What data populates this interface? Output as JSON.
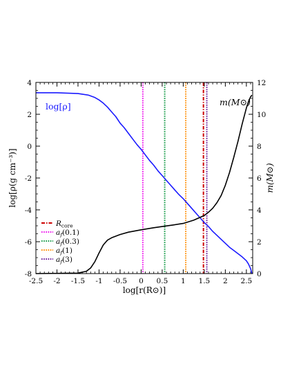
{
  "chart_data": {
    "type": "line",
    "xlabel": "log[r(R⊙)]",
    "ylabel_left": "log[ρ(g cm⁻³)]",
    "ylabel_right": "m(M⊙)",
    "xlim": [
      -2.5,
      2.65
    ],
    "ylim_left": [
      -8,
      4
    ],
    "ylim_right": [
      0,
      12
    ],
    "x_ticks": [
      -2.5,
      -2,
      -1.5,
      -1,
      -0.5,
      0,
      0.5,
      1,
      1.5,
      2,
      2.5
    ],
    "x_tick_labels": [
      "-2.5",
      "-2",
      "-1.5",
      "-1",
      "-0.5",
      "0",
      "0.5",
      "1",
      "1.5",
      "2",
      "2.5"
    ],
    "y_left_ticks": [
      4,
      2,
      0,
      -2,
      -4,
      -6,
      -8
    ],
    "y_left_tick_labels": [
      "4",
      "2",
      "0",
      "-2",
      "-4",
      "-6",
      "-8"
    ],
    "y_right_ticks": [
      12,
      10,
      8,
      6,
      4,
      2,
      0
    ],
    "y_right_tick_labels": [
      "12",
      "10",
      "8",
      "6",
      "4",
      "2",
      "0"
    ],
    "grid": false,
    "legend_position": "bottom-left",
    "annotations": [
      {
        "text": "log[ρ]",
        "color": "#1a1aff",
        "position": "top-left"
      },
      {
        "text": "m(M⊙)",
        "color": "#000000",
        "position": "top-right"
      }
    ],
    "series": [
      {
        "name": "log[ρ]",
        "axis": "left",
        "color": "#1a1aff",
        "x": [
          -2.5,
          -2.0,
          -1.5,
          -1.25,
          -1.1,
          -1.0,
          -0.9,
          -0.8,
          -0.7,
          -0.6,
          -0.5,
          -0.4,
          -0.3,
          -0.2,
          -0.1,
          0.0,
          0.1,
          0.2,
          0.3,
          0.4,
          0.5,
          0.6,
          0.7,
          0.8,
          0.9,
          1.0,
          1.1,
          1.2,
          1.3,
          1.4,
          1.5,
          1.6,
          1.7,
          1.8,
          1.9,
          2.0,
          2.1,
          2.2,
          2.3,
          2.4,
          2.5,
          2.55,
          2.6,
          2.63
        ],
        "y": [
          3.35,
          3.35,
          3.3,
          3.2,
          3.05,
          2.9,
          2.7,
          2.45,
          2.15,
          1.85,
          1.45,
          1.15,
          0.8,
          0.45,
          0.1,
          -0.2,
          -0.55,
          -0.9,
          -1.2,
          -1.55,
          -1.85,
          -2.15,
          -2.45,
          -2.75,
          -3.05,
          -3.3,
          -3.6,
          -3.9,
          -4.2,
          -4.5,
          -4.8,
          -5.05,
          -5.35,
          -5.6,
          -5.85,
          -6.1,
          -6.35,
          -6.55,
          -6.75,
          -6.95,
          -7.2,
          -7.4,
          -7.7,
          -8.0
        ]
      },
      {
        "name": "m(M⊙)",
        "axis": "right",
        "color": "#000000",
        "x": [
          -2.5,
          -1.5,
          -1.3,
          -1.2,
          -1.1,
          -1.0,
          -0.9,
          -0.8,
          -0.7,
          -0.5,
          -0.3,
          0.0,
          0.3,
          0.5,
          0.75,
          1.0,
          1.25,
          1.5,
          1.6,
          1.7,
          1.8,
          1.9,
          2.0,
          2.1,
          2.2,
          2.3,
          2.4,
          2.5,
          2.55,
          2.6,
          2.63
        ],
        "y": [
          0.0,
          0.03,
          0.15,
          0.35,
          0.75,
          1.3,
          1.8,
          2.1,
          2.25,
          2.45,
          2.6,
          2.75,
          2.88,
          2.95,
          3.05,
          3.15,
          3.35,
          3.65,
          3.85,
          4.1,
          4.45,
          4.9,
          5.55,
          6.35,
          7.3,
          8.3,
          9.4,
          10.4,
          10.8,
          11.1,
          11.2
        ]
      }
    ],
    "vlines": [
      {
        "name": "R_core",
        "x": 1.48,
        "color": "#cc0000",
        "style": "dash-dot",
        "label_main": "R",
        "label_sub": "core"
      },
      {
        "name": "a_f(0.1)",
        "x": 0.04,
        "color": "#ee11ee",
        "style": "dotted",
        "label_main": "a",
        "label_sub": "f",
        "label_arg": "(0.1)"
      },
      {
        "name": "a_f(0.3)",
        "x": 0.56,
        "color": "#119944",
        "style": "dotted",
        "label_main": "a",
        "label_sub": "f",
        "label_arg": "(0.3)"
      },
      {
        "name": "a_f(1)",
        "x": 1.06,
        "color": "#ff8c00",
        "style": "dotted",
        "label_main": "a",
        "label_sub": "f",
        "label_arg": "(1)"
      },
      {
        "name": "a_f(3)",
        "x": 1.56,
        "color": "#6a1b9a",
        "style": "dotted",
        "label_main": "a",
        "label_sub": "f",
        "label_arg": "(3)"
      }
    ]
  }
}
